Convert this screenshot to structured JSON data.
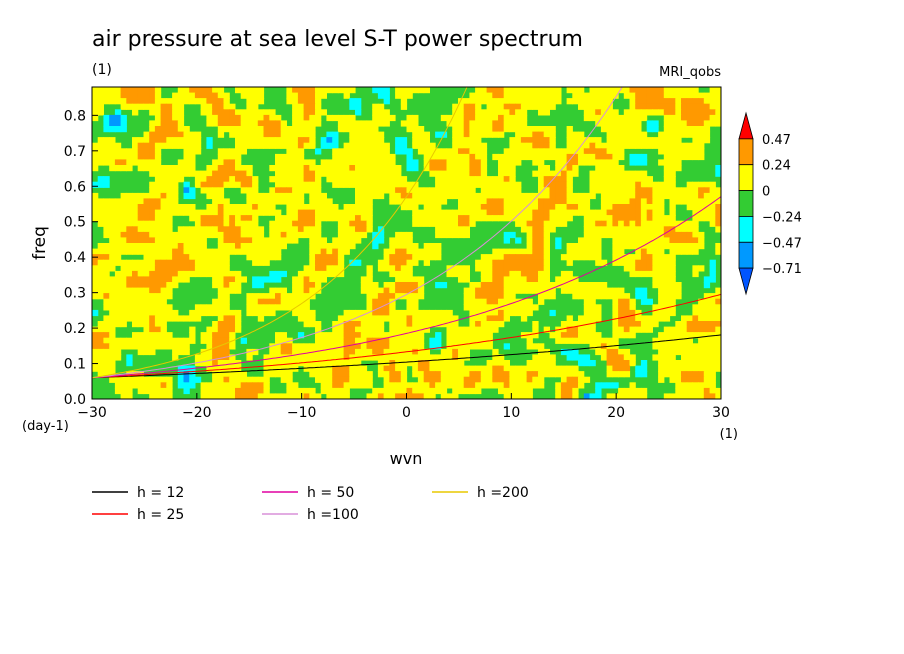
{
  "title": "air pressure at sea level S-T power spectrum",
  "units": "(1)",
  "dataset": "MRI_qobs",
  "chart_data": {
    "type": "heatmap",
    "xlabel": "wvn",
    "ylabel": "freq",
    "x_unit": "(1)",
    "y_unit": "(day-1)",
    "xlim": [
      -30,
      30
    ],
    "ylim": [
      0,
      0.88
    ],
    "x_ticks": [
      -30,
      -20,
      -10,
      0,
      10,
      20,
      30
    ],
    "y_ticks": [
      0.0,
      0.1,
      0.2,
      0.3,
      0.4,
      0.5,
      0.6,
      0.7,
      0.8
    ],
    "y_tick_labels": [
      "0.0",
      "0.1",
      "0.2",
      "0.3",
      "0.4",
      "0.5",
      "0.6",
      "0.7",
      "0.8"
    ],
    "colorbar": {
      "levels": [
        "0.47",
        "0.24",
        "0",
        "−0.24",
        "−0.47",
        "−0.71"
      ],
      "colors": [
        "#ff0000",
        "#ff9900",
        "#ffff00",
        "#33cc33",
        "#00ffff",
        "#0099ff",
        "#0055ff"
      ]
    },
    "series": [
      {
        "name": "h = 12",
        "color": "#000000",
        "h": 12
      },
      {
        "name": "h = 25",
        "color": "#ff0000",
        "h": 25
      },
      {
        "name": "h = 50",
        "color": "#e000a0",
        "h": 50
      },
      {
        "name": "h =100",
        "color": "#d890d8",
        "h": 100
      },
      {
        "name": "h =200",
        "color": "#e8c800",
        "h": 200
      }
    ]
  }
}
